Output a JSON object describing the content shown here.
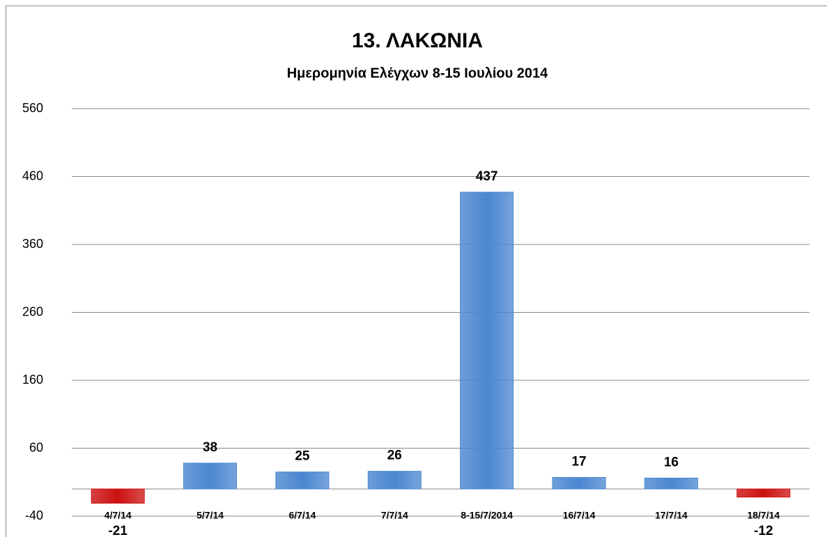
{
  "chart_data": {
    "type": "bar",
    "title": "13. ΛΑΚΩΝΙΑ",
    "subtitle": "Ημερομηνία Ελέγχων 8-15 Ιουλίου 2014",
    "categories": [
      "4/7/14",
      "5/7/14",
      "6/7/14",
      "7/7/14",
      "8-15/7/2014",
      "16/7/14",
      "17/7/14",
      "18/7/14"
    ],
    "values": [
      -21,
      38,
      25,
      26,
      437,
      17,
      16,
      -12
    ],
    "colors": [
      "#cc1010",
      "#4a86d0",
      "#4a86d0",
      "#4a86d0",
      "#4a86d0",
      "#4a86d0",
      "#4a86d0",
      "#cc1010"
    ],
    "ylim": [
      -40,
      560
    ],
    "yticks": [
      -40,
      60,
      160,
      260,
      360,
      460,
      560
    ],
    "grid": true
  }
}
